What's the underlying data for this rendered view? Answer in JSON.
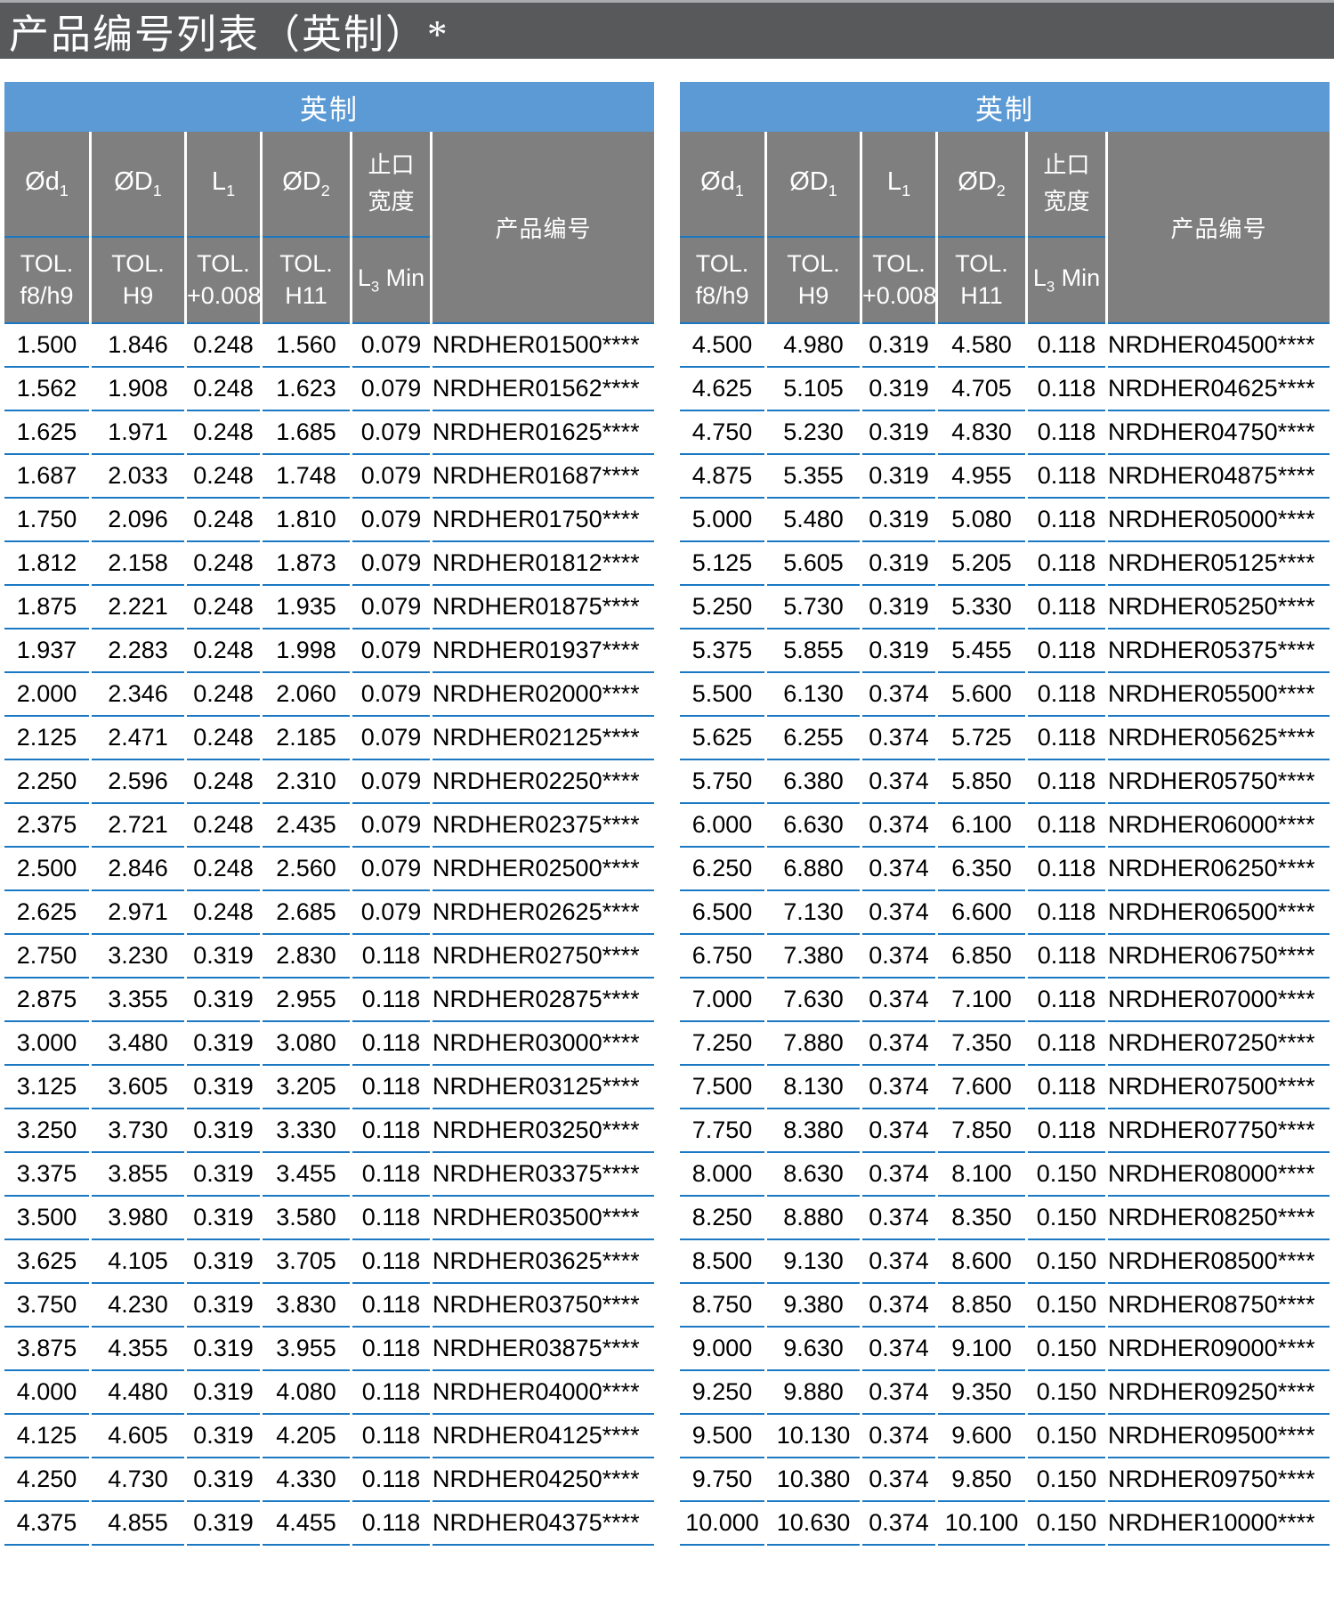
{
  "page_title": "产品编号列表（英制）*",
  "colors": {
    "title_bar": "#58595b",
    "title_bar_top_edge": "#a9abae",
    "band_blue": "#5b9ad5",
    "header_gray": "#7f7f7f",
    "line_blue": "#1b78c3",
    "text_black": "#000000",
    "text_white": "#ffffff"
  },
  "header": {
    "band": "英制",
    "col1": {
      "sym": "Ød",
      "sub": "1",
      "tol1": "TOL.",
      "tol2": "f8/h9"
    },
    "col2": {
      "sym": "ØD",
      "sub": "1",
      "tol1": "TOL.",
      "tol2": "H9"
    },
    "col3": {
      "sym": "L",
      "sub": "1",
      "tol1": "TOL.",
      "tol2": "+0.008"
    },
    "col4": {
      "sym": "ØD",
      "sub": "2",
      "tol1": "TOL.",
      "tol2": "H11"
    },
    "col5": {
      "sym1": "止口",
      "sym2": "宽度",
      "tol": "L",
      "tol_sub": "3",
      "tol_suffix": " Min"
    },
    "col6": {
      "label": "产品编号"
    }
  },
  "tables": [
    {
      "rows": [
        [
          "1.500",
          "1.846",
          "0.248",
          "1.560",
          "0.079",
          "NRDHER01500****"
        ],
        [
          "1.562",
          "1.908",
          "0.248",
          "1.623",
          "0.079",
          "NRDHER01562****"
        ],
        [
          "1.625",
          "1.971",
          "0.248",
          "1.685",
          "0.079",
          "NRDHER01625****"
        ],
        [
          "1.687",
          "2.033",
          "0.248",
          "1.748",
          "0.079",
          "NRDHER01687****"
        ],
        [
          "1.750",
          "2.096",
          "0.248",
          "1.810",
          "0.079",
          "NRDHER01750****"
        ],
        [
          "1.812",
          "2.158",
          "0.248",
          "1.873",
          "0.079",
          "NRDHER01812****"
        ],
        [
          "1.875",
          "2.221",
          "0.248",
          "1.935",
          "0.079",
          "NRDHER01875****"
        ],
        [
          "1.937",
          "2.283",
          "0.248",
          "1.998",
          "0.079",
          "NRDHER01937****"
        ],
        [
          "2.000",
          "2.346",
          "0.248",
          "2.060",
          "0.079",
          "NRDHER02000****"
        ],
        [
          "2.125",
          "2.471",
          "0.248",
          "2.185",
          "0.079",
          "NRDHER02125****"
        ],
        [
          "2.250",
          "2.596",
          "0.248",
          "2.310",
          "0.079",
          "NRDHER02250****"
        ],
        [
          "2.375",
          "2.721",
          "0.248",
          "2.435",
          "0.079",
          "NRDHER02375****"
        ],
        [
          "2.500",
          "2.846",
          "0.248",
          "2.560",
          "0.079",
          "NRDHER02500****"
        ],
        [
          "2.625",
          "2.971",
          "0.248",
          "2.685",
          "0.079",
          "NRDHER02625****"
        ],
        [
          "2.750",
          "3.230",
          "0.319",
          "2.830",
          "0.118",
          "NRDHER02750****"
        ],
        [
          "2.875",
          "3.355",
          "0.319",
          "2.955",
          "0.118",
          "NRDHER02875****"
        ],
        [
          "3.000",
          "3.480",
          "0.319",
          "3.080",
          "0.118",
          "NRDHER03000****"
        ],
        [
          "3.125",
          "3.605",
          "0.319",
          "3.205",
          "0.118",
          "NRDHER03125****"
        ],
        [
          "3.250",
          "3.730",
          "0.319",
          "3.330",
          "0.118",
          "NRDHER03250****"
        ],
        [
          "3.375",
          "3.855",
          "0.319",
          "3.455",
          "0.118",
          "NRDHER03375****"
        ],
        [
          "3.500",
          "3.980",
          "0.319",
          "3.580",
          "0.118",
          "NRDHER03500****"
        ],
        [
          "3.625",
          "4.105",
          "0.319",
          "3.705",
          "0.118",
          "NRDHER03625****"
        ],
        [
          "3.750",
          "4.230",
          "0.319",
          "3.830",
          "0.118",
          "NRDHER03750****"
        ],
        [
          "3.875",
          "4.355",
          "0.319",
          "3.955",
          "0.118",
          "NRDHER03875****"
        ],
        [
          "4.000",
          "4.480",
          "0.319",
          "4.080",
          "0.118",
          "NRDHER04000****"
        ],
        [
          "4.125",
          "4.605",
          "0.319",
          "4.205",
          "0.118",
          "NRDHER04125****"
        ],
        [
          "4.250",
          "4.730",
          "0.319",
          "4.330",
          "0.118",
          "NRDHER04250****"
        ],
        [
          "4.375",
          "4.855",
          "0.319",
          "4.455",
          "0.118",
          "NRDHER04375****"
        ]
      ]
    },
    {
      "rows": [
        [
          "4.500",
          "4.980",
          "0.319",
          "4.580",
          "0.118",
          "NRDHER04500****"
        ],
        [
          "4.625",
          "5.105",
          "0.319",
          "4.705",
          "0.118",
          "NRDHER04625****"
        ],
        [
          "4.750",
          "5.230",
          "0.319",
          "4.830",
          "0.118",
          "NRDHER04750****"
        ],
        [
          "4.875",
          "5.355",
          "0.319",
          "4.955",
          "0.118",
          "NRDHER04875****"
        ],
        [
          "5.000",
          "5.480",
          "0.319",
          "5.080",
          "0.118",
          "NRDHER05000****"
        ],
        [
          "5.125",
          "5.605",
          "0.319",
          "5.205",
          "0.118",
          "NRDHER05125****"
        ],
        [
          "5.250",
          "5.730",
          "0.319",
          "5.330",
          "0.118",
          "NRDHER05250****"
        ],
        [
          "5.375",
          "5.855",
          "0.319",
          "5.455",
          "0.118",
          "NRDHER05375****"
        ],
        [
          "5.500",
          "6.130",
          "0.374",
          "5.600",
          "0.118",
          "NRDHER05500****"
        ],
        [
          "5.625",
          "6.255",
          "0.374",
          "5.725",
          "0.118",
          "NRDHER05625****"
        ],
        [
          "5.750",
          "6.380",
          "0.374",
          "5.850",
          "0.118",
          "NRDHER05750****"
        ],
        [
          "6.000",
          "6.630",
          "0.374",
          "6.100",
          "0.118",
          "NRDHER06000****"
        ],
        [
          "6.250",
          "6.880",
          "0.374",
          "6.350",
          "0.118",
          "NRDHER06250****"
        ],
        [
          "6.500",
          "7.130",
          "0.374",
          "6.600",
          "0.118",
          "NRDHER06500****"
        ],
        [
          "6.750",
          "7.380",
          "0.374",
          "6.850",
          "0.118",
          "NRDHER06750****"
        ],
        [
          "7.000",
          "7.630",
          "0.374",
          "7.100",
          "0.118",
          "NRDHER07000****"
        ],
        [
          "7.250",
          "7.880",
          "0.374",
          "7.350",
          "0.118",
          "NRDHER07250****"
        ],
        [
          "7.500",
          "8.130",
          "0.374",
          "7.600",
          "0.118",
          "NRDHER07500****"
        ],
        [
          "7.750",
          "8.380",
          "0.374",
          "7.850",
          "0.118",
          "NRDHER07750****"
        ],
        [
          "8.000",
          "8.630",
          "0.374",
          "8.100",
          "0.150",
          "NRDHER08000****"
        ],
        [
          "8.250",
          "8.880",
          "0.374",
          "8.350",
          "0.150",
          "NRDHER08250****"
        ],
        [
          "8.500",
          "9.130",
          "0.374",
          "8.600",
          "0.150",
          "NRDHER08500****"
        ],
        [
          "8.750",
          "9.380",
          "0.374",
          "8.850",
          "0.150",
          "NRDHER08750****"
        ],
        [
          "9.000",
          "9.630",
          "0.374",
          "9.100",
          "0.150",
          "NRDHER09000****"
        ],
        [
          "9.250",
          "9.880",
          "0.374",
          "9.350",
          "0.150",
          "NRDHER09250****"
        ],
        [
          "9.500",
          "10.130",
          "0.374",
          "9.600",
          "0.150",
          "NRDHER09500****"
        ],
        [
          "9.750",
          "10.380",
          "0.374",
          "9.850",
          "0.150",
          "NRDHER09750****"
        ],
        [
          "10.000",
          "10.630",
          "0.374",
          "10.100",
          "0.150",
          "NRDHER10000****"
        ]
      ]
    }
  ]
}
